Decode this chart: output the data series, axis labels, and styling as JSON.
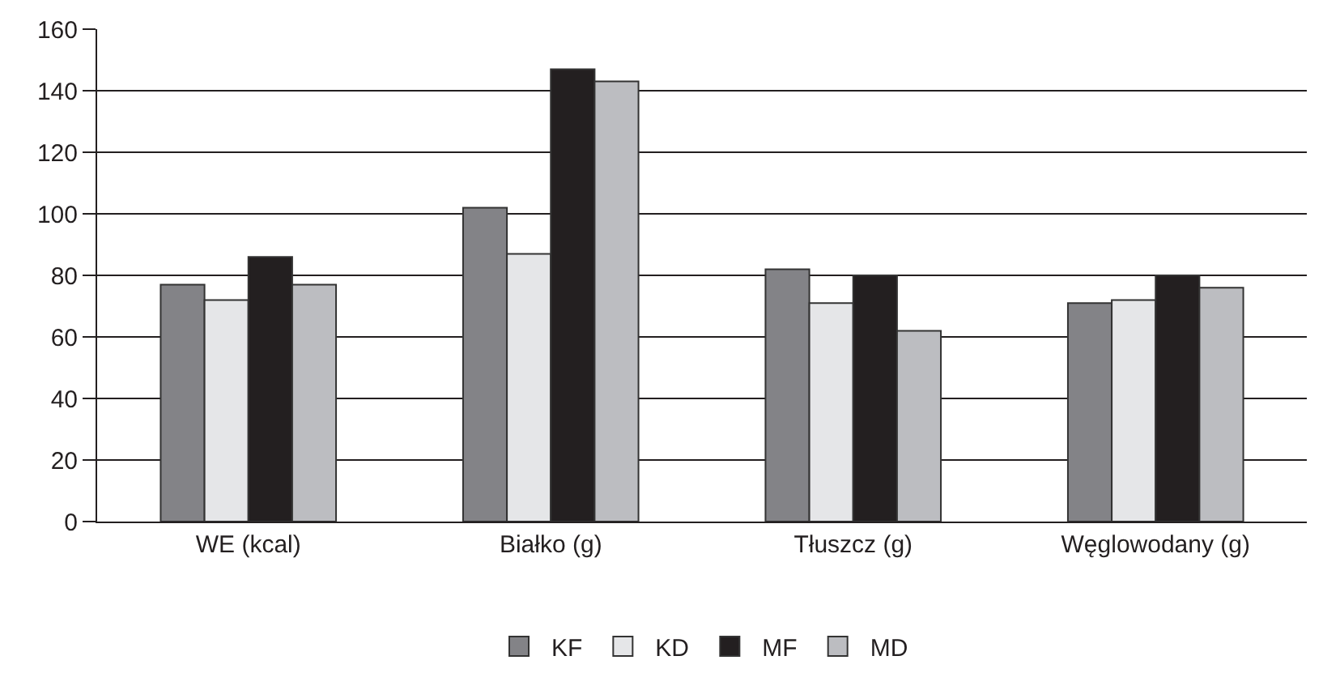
{
  "chart_data": {
    "type": "bar",
    "categories": [
      "WE (kcal)",
      "Białko (g)",
      "Tłuszcz (g)",
      "Węglowodany (g)"
    ],
    "series": [
      {
        "name": "KF",
        "color": "#838387",
        "values": [
          77,
          102,
          82,
          71
        ]
      },
      {
        "name": "KD",
        "color": "#e5e6e8",
        "values": [
          72,
          87,
          71,
          72
        ]
      },
      {
        "name": "MF",
        "color": "#231f20",
        "values": [
          86,
          147,
          80,
          80
        ]
      },
      {
        "name": "MD",
        "color": "#bcbdc1",
        "values": [
          77,
          143,
          62,
          76
        ]
      }
    ],
    "ylim": [
      0,
      160
    ],
    "yticks": [
      0,
      20,
      40,
      60,
      80,
      100,
      120,
      140,
      160
    ],
    "grid": "y",
    "legend": "bottom"
  }
}
